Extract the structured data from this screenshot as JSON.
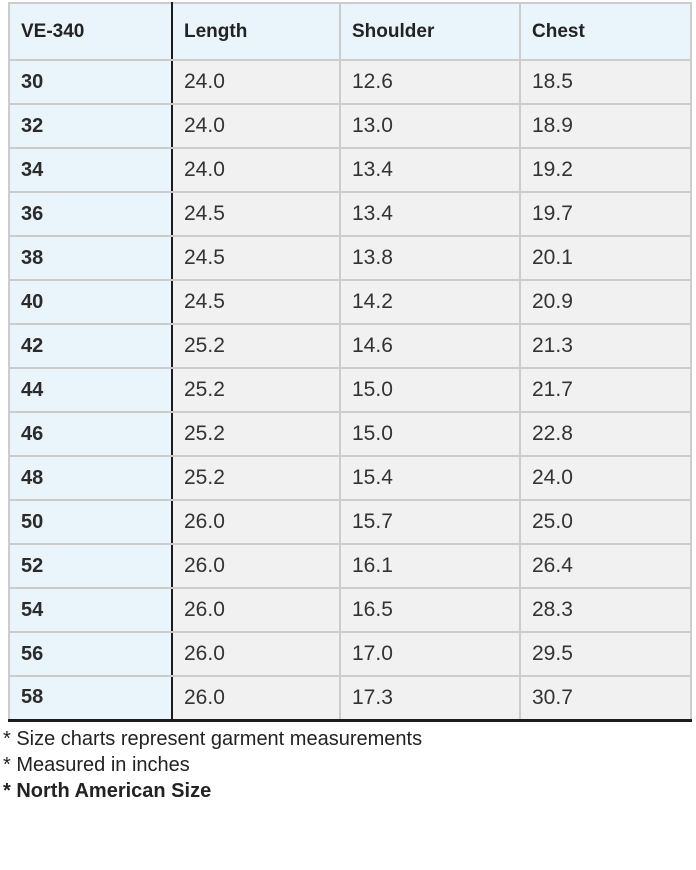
{
  "chart_data": {
    "type": "table",
    "title": "VE-340 size chart (garment measurements in inches)",
    "header": {
      "model": "VE-340",
      "columns": [
        "Length",
        "Shoulder",
        "Chest"
      ]
    },
    "rows": [
      {
        "size": "30",
        "values": [
          "24.0",
          "12.6",
          "18.5"
        ]
      },
      {
        "size": "32",
        "values": [
          "24.0",
          "13.0",
          "18.9"
        ]
      },
      {
        "size": "34",
        "values": [
          "24.0",
          "13.4",
          "19.2"
        ]
      },
      {
        "size": "36",
        "values": [
          "24.5",
          "13.4",
          "19.7"
        ]
      },
      {
        "size": "38",
        "values": [
          "24.5",
          "13.8",
          "20.1"
        ]
      },
      {
        "size": "40",
        "values": [
          "24.5",
          "14.2",
          "20.9"
        ]
      },
      {
        "size": "42",
        "values": [
          "25.2",
          "14.6",
          "21.3"
        ]
      },
      {
        "size": "44",
        "values": [
          "25.2",
          "15.0",
          "21.7"
        ]
      },
      {
        "size": "46",
        "values": [
          "25.2",
          "15.0",
          "22.8"
        ]
      },
      {
        "size": "48",
        "values": [
          "25.2",
          "15.4",
          "24.0"
        ]
      },
      {
        "size": "50",
        "values": [
          "26.0",
          "15.7",
          "25.0"
        ]
      },
      {
        "size": "52",
        "values": [
          "26.0",
          "16.1",
          "26.4"
        ]
      },
      {
        "size": "54",
        "values": [
          "26.0",
          "16.5",
          "28.3"
        ]
      },
      {
        "size": "56",
        "values": [
          "26.0",
          "17.0",
          "29.5"
        ]
      },
      {
        "size": "58",
        "values": [
          "26.0",
          "17.3",
          "30.7"
        ]
      }
    ],
    "footnotes": [
      {
        "text": "* Size charts represent garment measurements",
        "bold": false
      },
      {
        "text": "* Measured in inches",
        "bold": false
      },
      {
        "text": "* North American Size",
        "bold": true
      }
    ],
    "layout_hints": {
      "header_position": "top-row",
      "size_column_position": "left",
      "grid": "on"
    }
  },
  "colors": {
    "header_background": "#e9f4fb",
    "size_column_background": "#e9f4fb",
    "cell_background": "#f1f1f1",
    "border_dark": "#1c1c1c",
    "border_light": "#cccccc",
    "text": "#333333",
    "page_background": "#ffffff"
  }
}
